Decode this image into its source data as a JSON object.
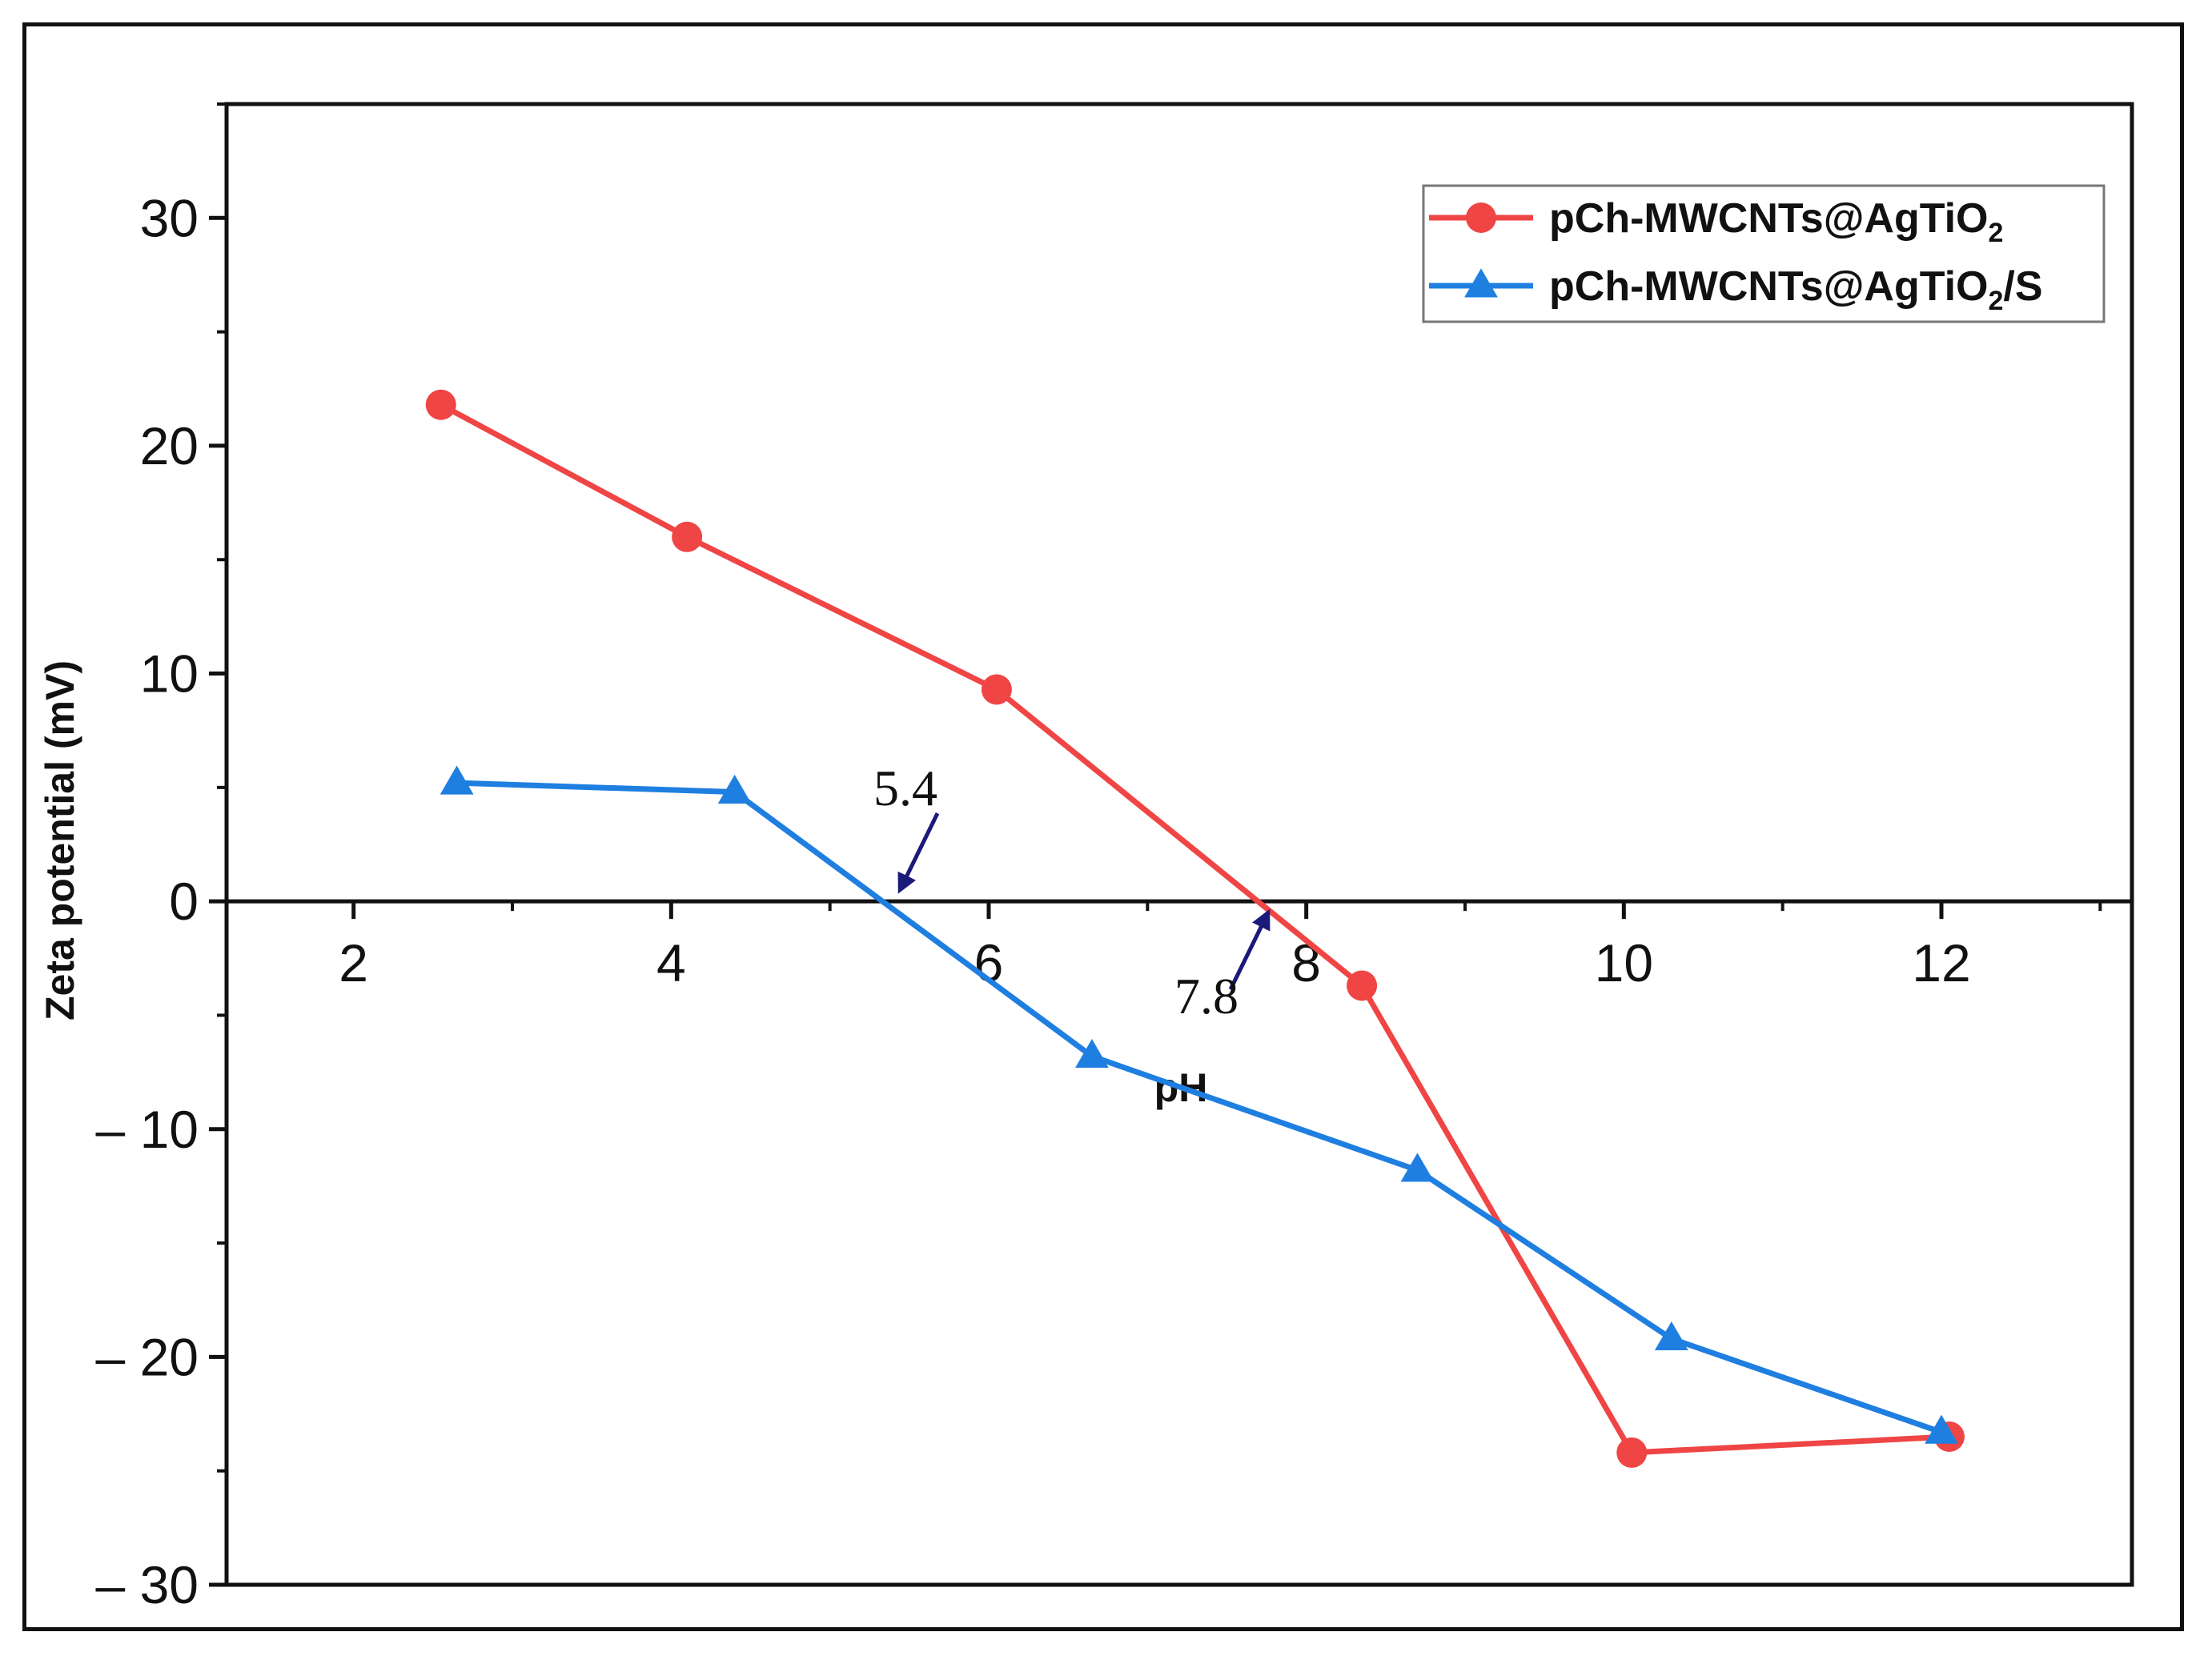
{
  "chart_data": {
    "type": "line",
    "title": "",
    "xlabel": "pH",
    "ylabel": "Zeta potential (mV)",
    "xlim": [
      1.2,
      13.2
    ],
    "ylim": [
      -30,
      35
    ],
    "x_ticks": [
      2,
      4,
      6,
      8,
      10,
      12
    ],
    "x_tick_labels": [
      "2",
      "4",
      "6",
      "8",
      "10",
      "12"
    ],
    "y_ticks": [
      30,
      20,
      10,
      0,
      -10,
      -20,
      -30
    ],
    "y_tick_labels": [
      "30",
      "20",
      "10",
      "0",
      "– 10",
      "– 20",
      "– 30"
    ],
    "grid": false,
    "legend_position": "top-right",
    "series": [
      {
        "name": "pCh-MWCNTs@AgTiO",
        "name_subscript": "2",
        "name_suffix": "",
        "marker": "circle",
        "color": "#f04545",
        "x": [
          2.55,
          4.1,
          6.05,
          8.35,
          10.05,
          12.05
        ],
        "y": [
          21.8,
          16.0,
          9.3,
          -3.7,
          -24.2,
          -23.5
        ]
      },
      {
        "name": "pCh-MWCNTs@AgTiO",
        "name_subscript": "2",
        "name_suffix": "/S",
        "marker": "triangle",
        "color": "#1f7fe0",
        "x": [
          2.65,
          4.4,
          6.65,
          8.7,
          10.3,
          12.0
        ],
        "y": [
          5.2,
          4.8,
          -6.8,
          -11.8,
          -19.2,
          -23.3
        ]
      }
    ],
    "annotations": [
      {
        "text": "5.4",
        "x": 5.4,
        "y": 0
      },
      {
        "text": "7.8",
        "x": 7.8,
        "y": 0
      }
    ]
  }
}
